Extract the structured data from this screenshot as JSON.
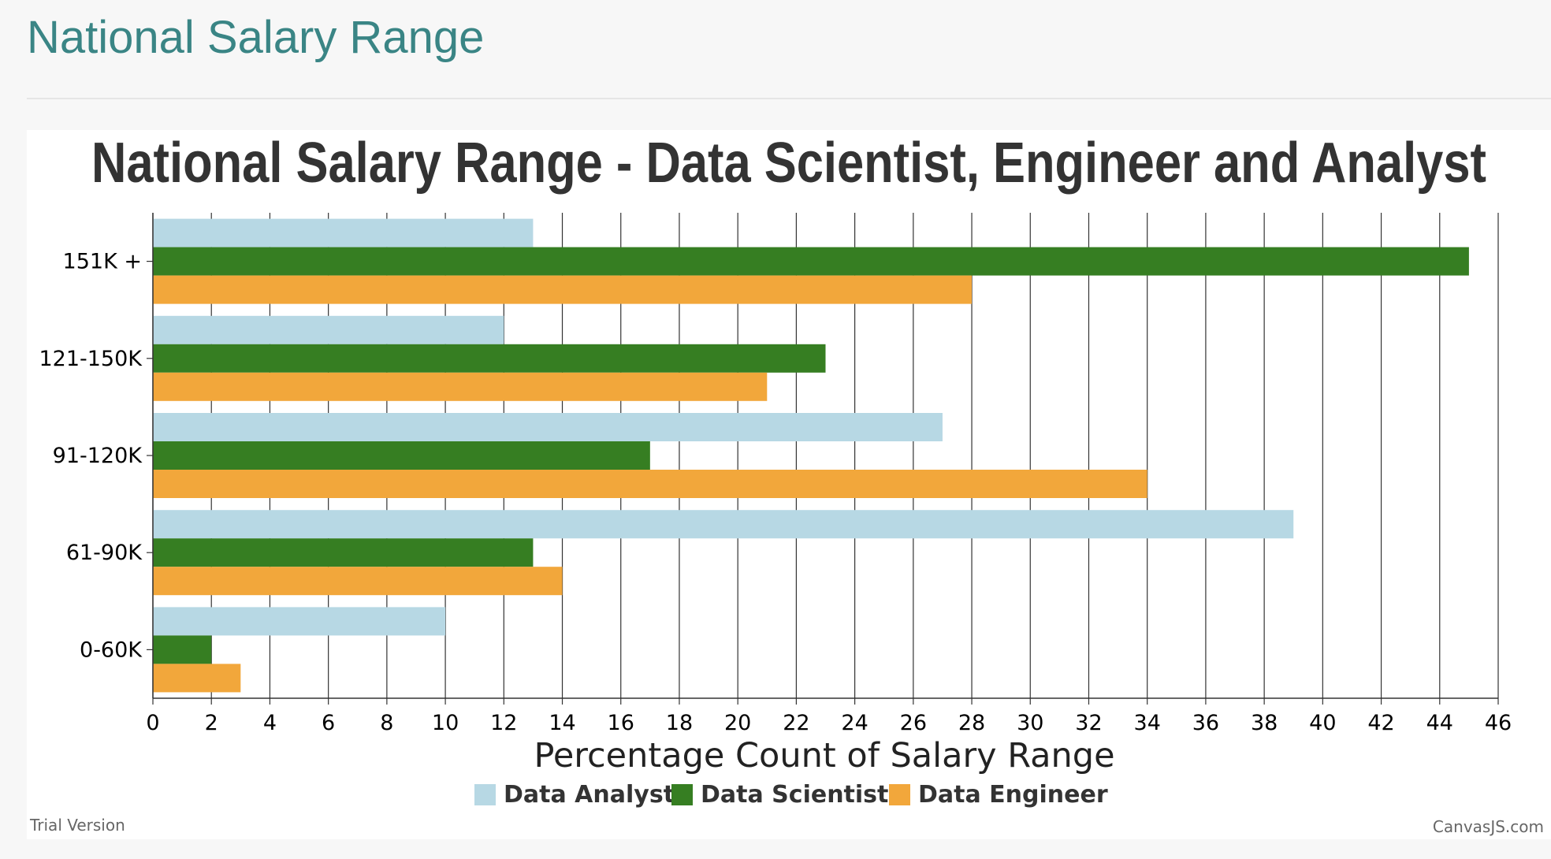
{
  "page": {
    "heading": "National Salary Range"
  },
  "chart_data": {
    "type": "bar",
    "orientation": "horizontal",
    "title": "National Salary Range  - Data Scientist, Engineer and Analyst",
    "xlabel": "Percentage Count of Salary Range",
    "ylabel": "",
    "categories": [
      "0-60K",
      "61-90K",
      "91-120K",
      "121-150K",
      "151K +"
    ],
    "series": [
      {
        "name": "Data Analyst",
        "color": "#b7d8e4",
        "values": [
          10,
          39,
          27,
          12,
          13
        ]
      },
      {
        "name": "Data Scientist",
        "color": "#367e22",
        "values": [
          2,
          13,
          17,
          23,
          45
        ]
      },
      {
        "name": "Data Engineer",
        "color": "#f2a73b",
        "values": [
          3,
          14,
          34,
          21,
          28
        ]
      }
    ],
    "xlim": [
      0,
      46
    ],
    "xticks": [
      0,
      2,
      4,
      6,
      8,
      10,
      12,
      14,
      16,
      18,
      20,
      22,
      24,
      26,
      28,
      30,
      32,
      34,
      36,
      38,
      40,
      42,
      44,
      46
    ],
    "grid": true,
    "legend": "bottom-center"
  },
  "footer": {
    "trial_note": "Trial Version",
    "credit": "CanvasJS.com"
  }
}
